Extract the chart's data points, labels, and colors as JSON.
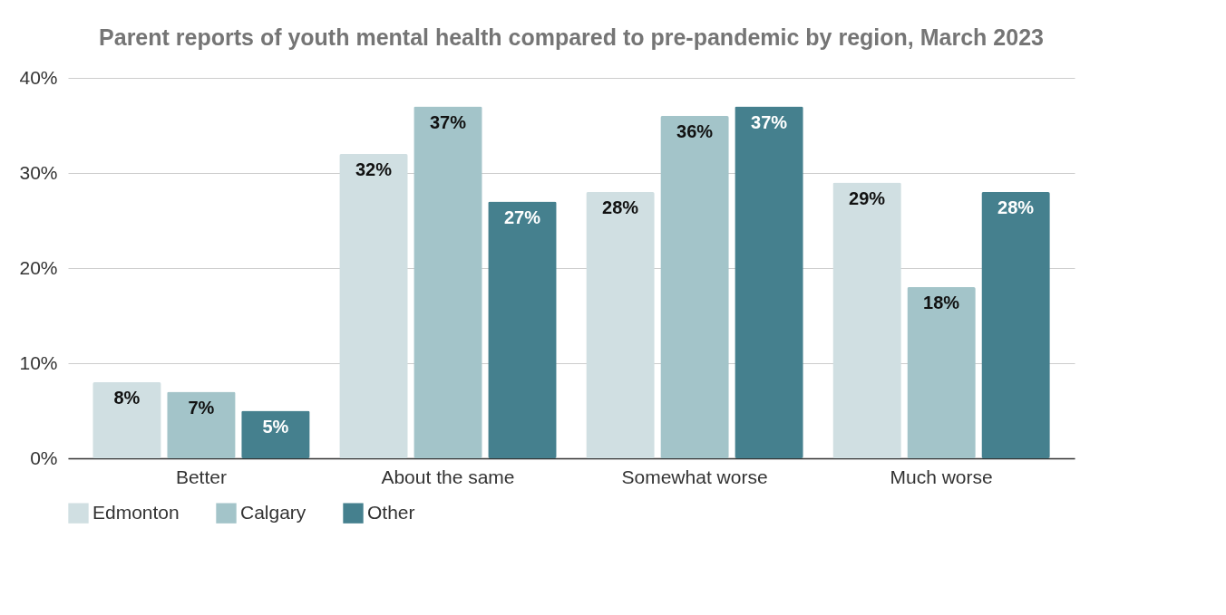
{
  "chart_data": {
    "type": "bar",
    "title": "Parent reports of youth mental health compared to pre-pandemic by region, March 2023",
    "categories": [
      "Better",
      "About the same",
      "Somewhat worse",
      "Much worse"
    ],
    "series": [
      {
        "name": "Edmonton",
        "color": "#d0dfe2",
        "values": [
          8,
          32,
          28,
          29
        ],
        "value_labels": [
          "8%",
          "32%",
          "28%",
          "29%"
        ]
      },
      {
        "name": "Calgary",
        "color": "#a3c4c9",
        "values": [
          7,
          37,
          36,
          18
        ],
        "value_labels": [
          "7%",
          "37%",
          "36%",
          "18%"
        ]
      },
      {
        "name": "Other",
        "color": "#45808e",
        "values": [
          5,
          27,
          37,
          28
        ],
        "value_labels": [
          "5%",
          "27%",
          "37%",
          "28%"
        ]
      }
    ],
    "ylim": [
      0,
      40
    ],
    "yticks": [
      {
        "value": 0,
        "label": "0%"
      },
      {
        "value": 10,
        "label": "10%"
      },
      {
        "value": 20,
        "label": "20%"
      },
      {
        "value": 30,
        "label": "30%"
      },
      {
        "value": 40,
        "label": "40%"
      }
    ],
    "grid": "y",
    "legend": "bottom"
  }
}
